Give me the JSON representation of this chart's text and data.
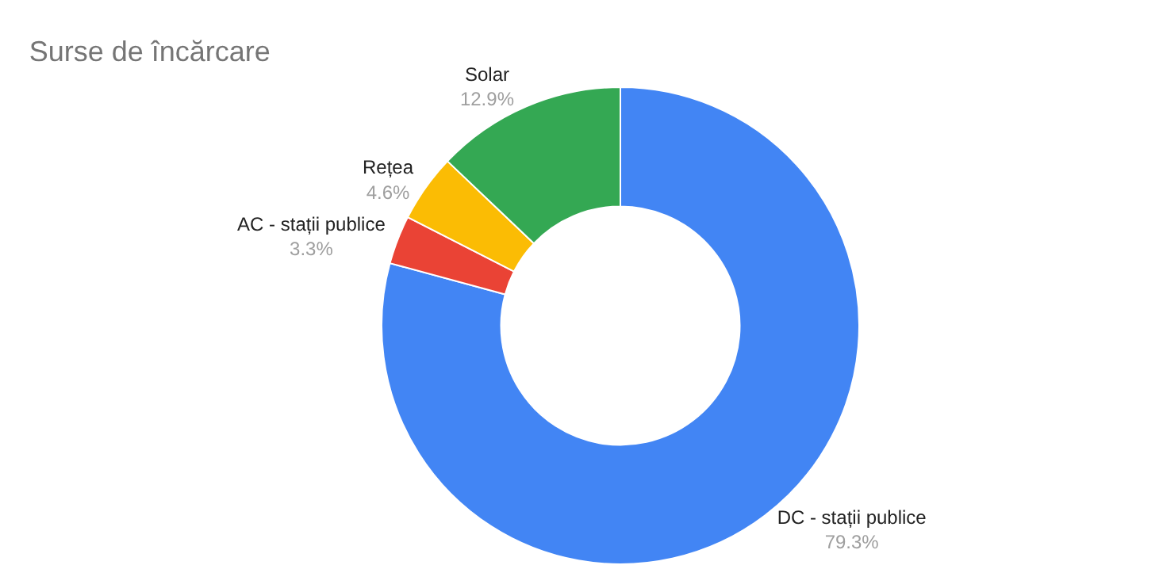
{
  "chart_data": {
    "type": "donut",
    "title": "Surse de încărcare",
    "categories": [
      "DC - stații publice",
      "AC - stații publice",
      "Rețea",
      "Solar"
    ],
    "values": [
      79.3,
      3.3,
      4.6,
      12.9
    ],
    "value_labels": [
      "79.3%",
      "3.3%",
      "4.6%",
      "12.9%"
    ],
    "colors": [
      "#4285f4",
      "#ea4335",
      "#fbbc04",
      "#34a853"
    ],
    "legend": false
  }
}
